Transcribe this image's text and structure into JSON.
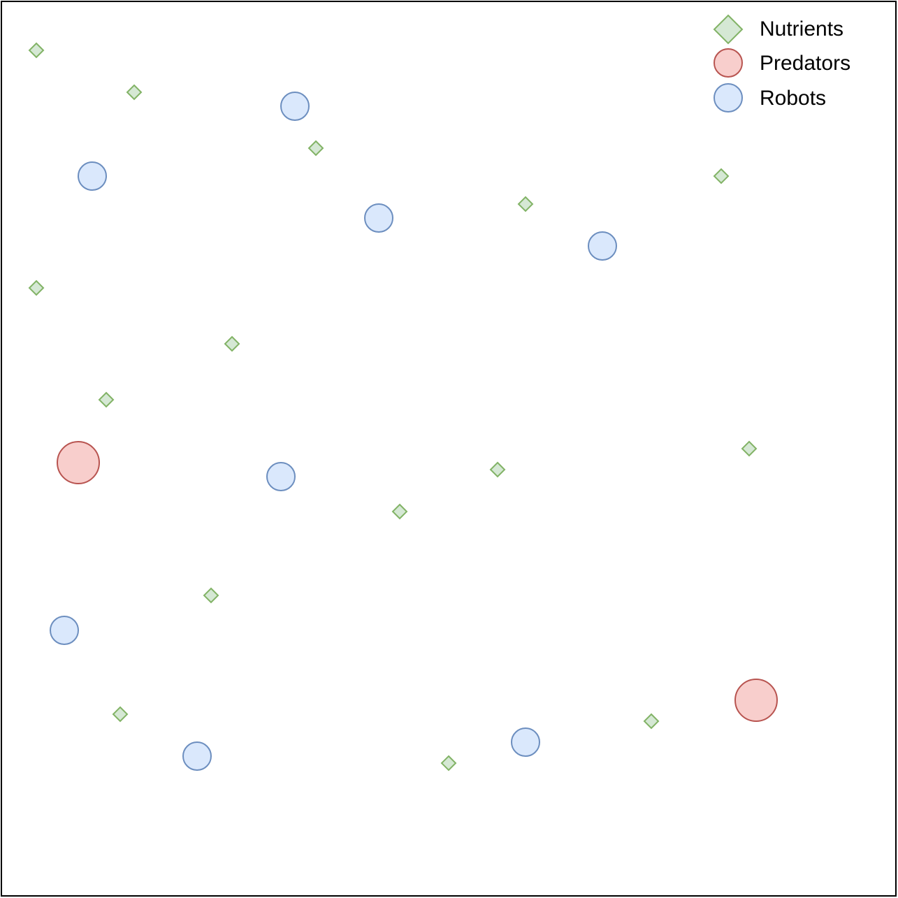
{
  "colors": {
    "nutrient_fill": "#d5e8d4",
    "nutrient_stroke": "#82b366",
    "predator_fill": "#f8cecc",
    "predator_stroke": "#b85450",
    "robot_fill": "#dae8fc",
    "robot_stroke": "#6c8ebf",
    "border": "#000000"
  },
  "legend": {
    "nutrients_label": "Nutrients",
    "predators_label": "Predators",
    "robots_label": "Robots"
  }
}
